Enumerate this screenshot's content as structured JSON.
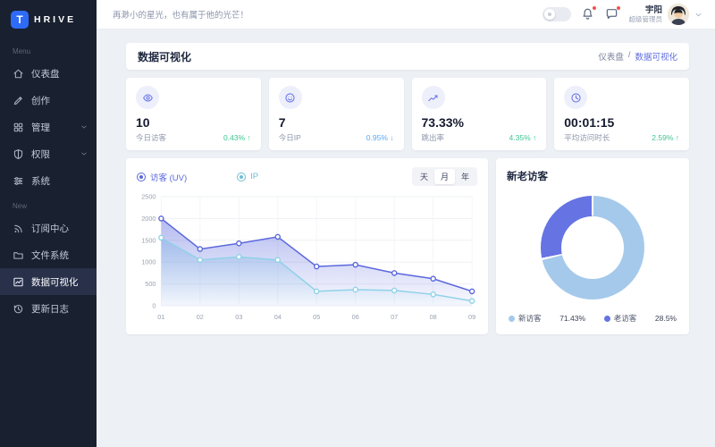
{
  "brand": {
    "logo_letter": "T",
    "name": "HRIVE"
  },
  "topbar": {
    "quote": "再渺小的星光，也有属于他的光芒！",
    "user": {
      "name": "宇阳",
      "role": "超级管理员"
    }
  },
  "sidebar": {
    "sections": [
      {
        "label": "Menu",
        "items": [
          {
            "key": "dashboard",
            "icon": "home-icon",
            "label": "仪表盘"
          },
          {
            "key": "create",
            "icon": "pen-icon",
            "label": "创作"
          },
          {
            "key": "manage",
            "icon": "grid-icon",
            "label": "管理",
            "chevron": true
          },
          {
            "key": "permissions",
            "icon": "shield-icon",
            "label": "权限",
            "chevron": true
          },
          {
            "key": "system",
            "icon": "sliders-icon",
            "label": "系统"
          }
        ]
      },
      {
        "label": "New",
        "items": [
          {
            "key": "subscriptions",
            "icon": "rss-icon",
            "label": "订阅中心"
          },
          {
            "key": "file-system",
            "icon": "folder-icon",
            "label": "文件系统"
          },
          {
            "key": "data-visualization",
            "icon": "chart-icon",
            "label": "数据可视化",
            "active": true
          },
          {
            "key": "changelog",
            "icon": "history-icon",
            "label": "更新日志"
          }
        ]
      }
    ]
  },
  "page": {
    "title": "数据可视化",
    "breadcrumb": {
      "parent": "仪表盘",
      "separator": "/",
      "current": "数据可视化"
    }
  },
  "stats": [
    {
      "key": "today-visitors",
      "icon": "eye-icon",
      "value": "10",
      "label": "今日访客",
      "delta": "0.43%",
      "direction": "up",
      "delta_color": "#3fc690"
    },
    {
      "key": "today-ip",
      "icon": "smile-icon",
      "value": "7",
      "label": "今日IP",
      "delta": "0.95%",
      "direction": "down",
      "delta_color": "#58a8f8"
    },
    {
      "key": "bounce-rate",
      "icon": "trend-icon",
      "value": "73.33%",
      "label": "跳出率",
      "delta": "4.35%",
      "direction": "up",
      "delta_color": "#3fc690"
    },
    {
      "key": "avg-visit-duration",
      "icon": "clock-icon",
      "value": "00:01:15",
      "label": "平均访问时长",
      "delta": "2.59%",
      "direction": "up",
      "delta_color": "#3fc690"
    }
  ],
  "chart_data": [
    {
      "type": "area",
      "title": "",
      "legend": [
        {
          "key": "uv",
          "label": "访客 (UV)",
          "color": "#5a68dd",
          "selected": true
        },
        {
          "key": "ip",
          "label": "IP",
          "color": "#6fbcd4",
          "selected": true
        }
      ],
      "time_filters": {
        "options": [
          "天",
          "月",
          "年"
        ],
        "selected": "月"
      },
      "x": [
        "01",
        "02",
        "03",
        "04",
        "05",
        "06",
        "07",
        "08",
        "09"
      ],
      "series": [
        {
          "name": "访客 (UV)",
          "color": "#5a68dd",
          "values": [
            2000,
            1300,
            1430,
            1580,
            900,
            940,
            750,
            620,
            330
          ]
        },
        {
          "name": "IP",
          "color": "#8fd2e8",
          "values": [
            1560,
            1050,
            1120,
            1050,
            330,
            370,
            350,
            260,
            110
          ]
        }
      ],
      "ylim": [
        0,
        2500
      ],
      "yticks": [
        0,
        500,
        1000,
        1500,
        2000,
        2500
      ],
      "grid": true,
      "legend_position": "top-left"
    },
    {
      "type": "pie",
      "title": "新老访客",
      "slices": [
        {
          "label": "新访客",
          "value": 71.43,
          "display": "71.43%",
          "color": "#a5c9ea"
        },
        {
          "label": "老访客",
          "value": 28.5,
          "display": "28.5%",
          "color": "#6673e3"
        }
      ],
      "legend_position": "bottom"
    }
  ],
  "colors": {
    "accent": "#5f6ce0",
    "badge": "#ef5350",
    "sidebar_bg": "#19202f"
  }
}
